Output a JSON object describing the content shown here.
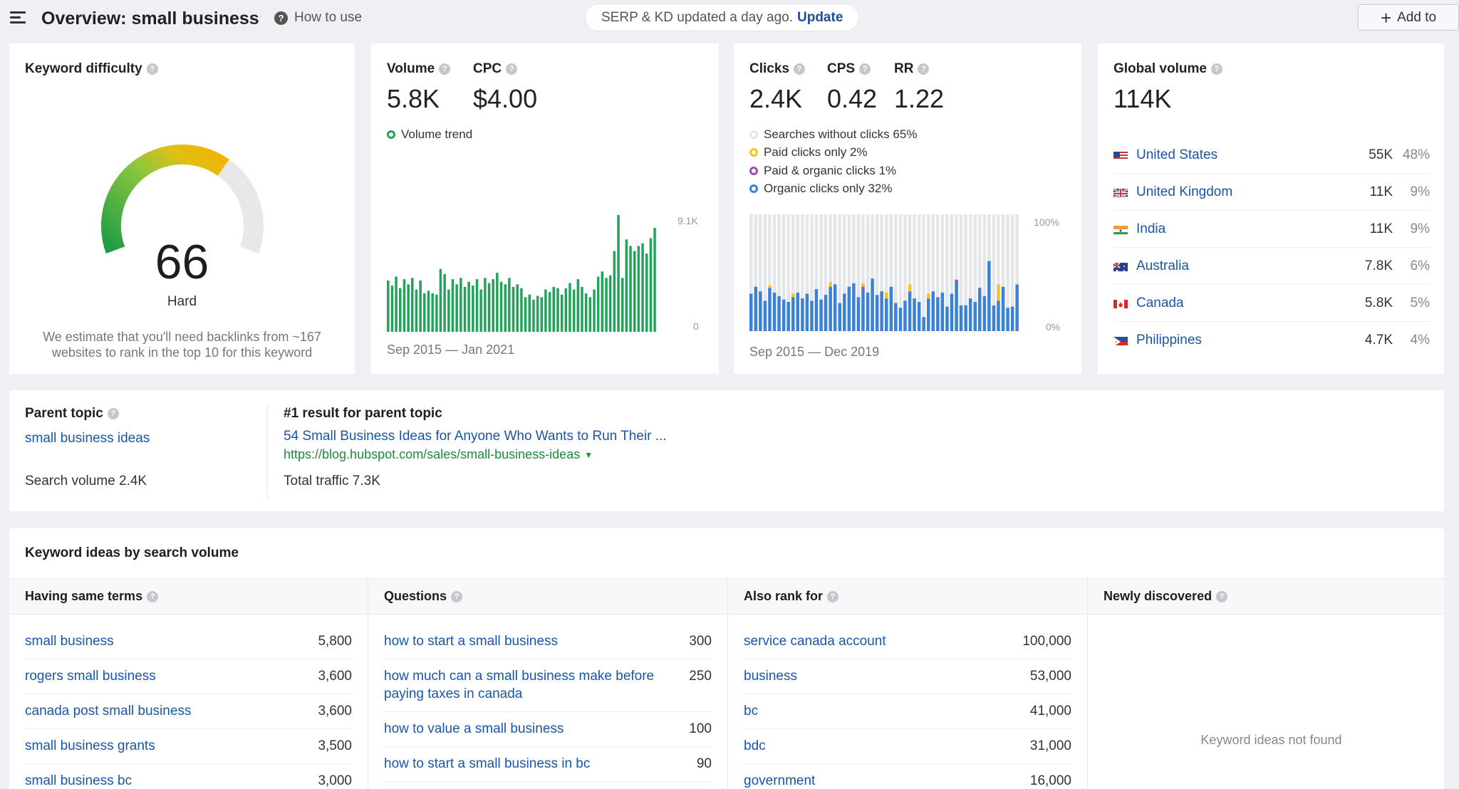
{
  "header": {
    "title": "Overview: small business",
    "how_to_use": "How to use",
    "serp_status": "SERP & KD updated a day ago.",
    "update_label": "Update",
    "add_to_label": "Add to"
  },
  "keyword_difficulty": {
    "label": "Keyword difficulty",
    "value": 66,
    "value_text": "66",
    "rating": "Hard",
    "note": "We estimate that you'll need backlinks from ~167 websites to rank in the top 10 for this keyword"
  },
  "volume": {
    "label": "Volume",
    "value": "5.8K",
    "cpc_label": "CPC",
    "cpc_value": "$4.00",
    "trend_legend": "Volume trend",
    "y_max_label": "9.1K",
    "y_min_label": "0",
    "range": "Sep 2015 — Jan 2021",
    "trend_color": "#23a35a"
  },
  "clicks": {
    "label": "Clicks",
    "value": "2.4K",
    "cps_label": "CPS",
    "cps_value": "0.42",
    "rr_label": "RR",
    "rr_value": "1.22",
    "legend": [
      {
        "label": "Searches without clicks 65%",
        "color": "#e4e6e9"
      },
      {
        "label": "Paid clicks only 2%",
        "color": "#f5c518"
      },
      {
        "label": "Paid & organic clicks 1%",
        "color": "#a24ab8"
      },
      {
        "label": "Organic clicks only 32%",
        "color": "#3b82d6"
      }
    ],
    "y_max_label": "100%",
    "y_min_label": "0%",
    "range": "Sep 2015 — Dec 2019"
  },
  "global_volume": {
    "label": "Global volume",
    "value": "114K",
    "countries": [
      {
        "name": "United States",
        "volume": "55K",
        "pct": "48%",
        "flag": "us"
      },
      {
        "name": "United Kingdom",
        "volume": "11K",
        "pct": "9%",
        "flag": "gb"
      },
      {
        "name": "India",
        "volume": "11K",
        "pct": "9%",
        "flag": "in"
      },
      {
        "name": "Australia",
        "volume": "7.8K",
        "pct": "6%",
        "flag": "au"
      },
      {
        "name": "Canada",
        "volume": "5.8K",
        "pct": "5%",
        "flag": "ca"
      },
      {
        "name": "Philippines",
        "volume": "4.7K",
        "pct": "4%",
        "flag": "ph"
      }
    ]
  },
  "parent_topic": {
    "label": "Parent topic",
    "topic": "small business ideas",
    "search_volume": "Search volume 2.4K",
    "top_result_label": "#1 result for parent topic",
    "top_result_title": "54 Small Business Ideas for Anyone Who Wants to Run Their ...",
    "top_result_url": "https://blog.hubspot.com/sales/small-business-ideas",
    "total_traffic": "Total traffic 7.3K"
  },
  "keyword_ideas": {
    "title": "Keyword ideas by search volume",
    "columns": [
      {
        "header": "Having same terms",
        "rows": [
          {
            "keyword": "small business",
            "volume": "5,800"
          },
          {
            "keyword": "rogers small business",
            "volume": "3,600"
          },
          {
            "keyword": "canada post small business",
            "volume": "3,600"
          },
          {
            "keyword": "small business grants",
            "volume": "3,500"
          },
          {
            "keyword": "small business bc",
            "volume": "3,000"
          }
        ]
      },
      {
        "header": "Questions",
        "rows": [
          {
            "keyword": "how to start a small business",
            "volume": "300"
          },
          {
            "keyword": "how much can a small business make before paying taxes in canada",
            "volume": "250"
          },
          {
            "keyword": "how to value a small business",
            "volume": "100"
          },
          {
            "keyword": "how to start a small business in bc",
            "volume": "90"
          }
        ]
      },
      {
        "header": "Also rank for",
        "rows": [
          {
            "keyword": "service canada account",
            "volume": "100,000"
          },
          {
            "keyword": "business",
            "volume": "53,000"
          },
          {
            "keyword": "bc",
            "volume": "41,000"
          },
          {
            "keyword": "bdc",
            "volume": "31,000"
          },
          {
            "keyword": "government",
            "volume": "16,000"
          }
        ]
      },
      {
        "header": "Newly discovered",
        "rows": [],
        "empty_text": "Keyword ideas not found"
      }
    ]
  },
  "colors": {
    "link": "#1a56a8",
    "url_green": "#1e8a3c",
    "organic_blue": "#3b82d6",
    "paid_yellow": "#f5c518",
    "paid_organic_purple": "#a24ab8",
    "no_click_gray": "#e4e6e9"
  },
  "chart_data": [
    {
      "type": "bar",
      "name": "Volume trend",
      "x_range": [
        "Sep 2015",
        "Jan 2021"
      ],
      "ylim": [
        0,
        9100
      ],
      "values": [
        4000,
        3600,
        4300,
        3400,
        4100,
        3700,
        4200,
        3300,
        4000,
        3000,
        3200,
        3000,
        2900,
        4900,
        4500,
        3300,
        4100,
        3700,
        4200,
        3500,
        3900,
        3600,
        4100,
        3300,
        4200,
        3800,
        4100,
        4600,
        3900,
        3700,
        4200,
        3500,
        3700,
        3400,
        2700,
        2900,
        2500,
        2800,
        2700,
        3300,
        3100,
        3500,
        3400,
        2900,
        3400,
        3800,
        3300,
        4100,
        3500,
        3000,
        2700,
        3300,
        4300,
        4700,
        4200,
        4400,
        6300,
        9100,
        4200,
        7200,
        6700,
        6300,
        6700,
        6900,
        6100,
        7300,
        8100
      ]
    },
    {
      "type": "bar",
      "name": "Clicks distribution",
      "x_range": [
        "Sep 2015",
        "Dec 2019"
      ],
      "ylim": [
        0,
        100
      ],
      "series": [
        {
          "name": "Organic clicks only",
          "values": [
            32,
            38,
            34,
            26,
            37,
            33,
            30,
            27,
            25,
            29,
            33,
            28,
            32,
            26,
            36,
            27,
            31,
            38,
            40,
            24,
            32,
            38,
            41,
            29,
            36,
            33,
            45,
            31,
            34,
            28,
            38,
            24,
            20,
            26,
            34,
            28,
            25,
            12,
            28,
            34,
            29,
            33,
            21,
            32,
            42,
            22,
            22,
            28,
            25,
            37,
            30,
            60,
            22,
            26,
            38,
            20,
            21,
            40
          ]
        },
        {
          "name": "Paid clicks only",
          "values": [
            0,
            0,
            0,
            0,
            2,
            0,
            0,
            0,
            0,
            3,
            0,
            0,
            0,
            0,
            0,
            0,
            0,
            4,
            0,
            0,
            0,
            0,
            0,
            0,
            3,
            0,
            0,
            0,
            0,
            5,
            0,
            0,
            0,
            0,
            6,
            0,
            0,
            0,
            4,
            0,
            0,
            0,
            0,
            0,
            0,
            0,
            0,
            0,
            0,
            0,
            0,
            0,
            0,
            14,
            0,
            0,
            0,
            0
          ]
        },
        {
          "name": "Paid & organic clicks",
          "values": [
            0,
            0,
            0,
            0,
            0,
            0,
            0,
            0,
            0,
            0,
            0,
            0,
            0,
            0,
            0,
            0,
            0,
            0,
            0,
            0,
            0,
            0,
            0,
            0,
            2,
            0,
            0,
            0,
            0,
            0,
            0,
            0,
            0,
            0,
            0,
            0,
            0,
            0,
            0,
            0,
            0,
            0,
            0,
            0,
            2,
            0,
            0,
            0,
            0,
            0,
            0,
            0,
            0,
            0,
            0,
            0,
            0,
            0
          ]
        }
      ]
    }
  ]
}
